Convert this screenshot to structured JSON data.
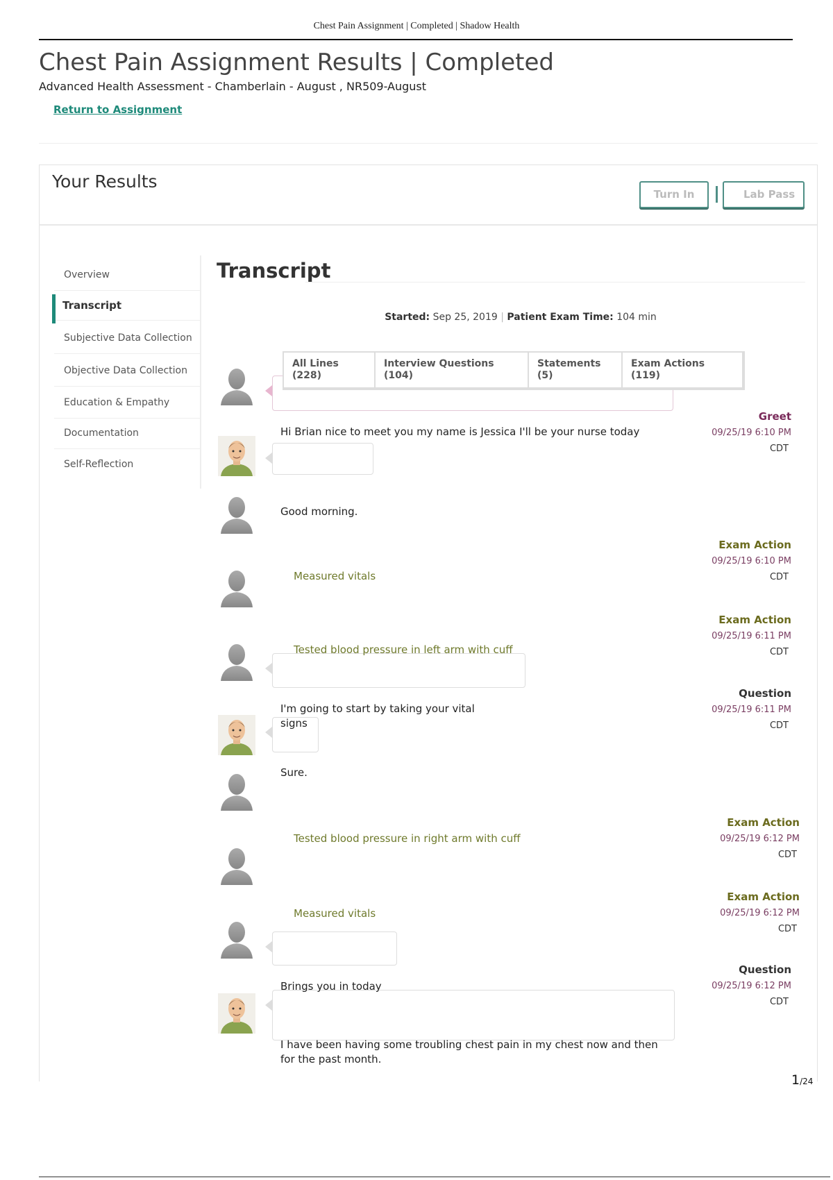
{
  "doc_header": "Chest Pain Assignment | Completed | Shadow Health",
  "page_title": "Chest Pain Assignment Results | Completed",
  "subtitle": "Advanced Health Assessment - Chamberlain - August , NR509-August",
  "return_link": "Return to Assignment",
  "results": {
    "title": "Your Results",
    "turn_in_label": "Turn In",
    "lab_pass_label": "Lab Pass"
  },
  "sidebar": {
    "items": [
      {
        "label": "Overview"
      },
      {
        "label": "Transcript",
        "active": true
      },
      {
        "label": "Subjective Data Collection"
      },
      {
        "label": "Objective Data Collection"
      },
      {
        "label": "Education & Empathy"
      },
      {
        "label": "Documentation"
      },
      {
        "label": "Self-Reflection"
      }
    ]
  },
  "transcript": {
    "title": "Transcript",
    "started_label": "Started:",
    "started_value": "Sep 25, 2019",
    "exam_time_label": "Patient Exam Time:",
    "exam_time_value": "104 min",
    "tabs": [
      {
        "label": "All Lines",
        "count": "(228)"
      },
      {
        "label": "Interview Questions",
        "count": "(104)"
      },
      {
        "label": "Statements",
        "count": "(5)"
      },
      {
        "label": "Exam Actions",
        "count": "(119)"
      }
    ],
    "entries": [
      {
        "speaker": "patient",
        "text": "",
        "label": "",
        "date": "",
        "tz": ""
      },
      {
        "speaker": "nurse",
        "kind": "greet",
        "text": "Hi Brian nice to meet you my name is Jessica I'll be your nurse today",
        "label": "Greet",
        "date": "09/25/19 6:10 PM",
        "tz": "CDT"
      },
      {
        "speaker": "patient",
        "text": "Good morning.",
        "label": "",
        "date": "",
        "tz": ""
      },
      {
        "speaker": "patient",
        "kind": "exam",
        "text": "Measured vitals",
        "label": "Exam Action",
        "date": "09/25/19 6:10 PM",
        "tz": "CDT"
      },
      {
        "speaker": "patient",
        "kind": "exam",
        "text": "Tested blood pressure in left arm with cuff",
        "label": "Exam Action",
        "date": "09/25/19 6:11 PM",
        "tz": "CDT"
      },
      {
        "speaker": "nurse",
        "kind": "question",
        "text": "I'm going to start by taking your vital signs",
        "label": "Question",
        "date": "09/25/19 6:11 PM",
        "tz": "CDT"
      },
      {
        "speaker": "patient",
        "text": "Sure.",
        "label": "",
        "date": "",
        "tz": ""
      },
      {
        "speaker": "patient",
        "kind": "exam",
        "text": "Tested blood pressure in right arm with cuff",
        "label": "Exam Action",
        "date": "09/25/19 6:12 PM",
        "tz": "CDT"
      },
      {
        "speaker": "patient",
        "kind": "exam",
        "text": "Measured vitals",
        "label": "Exam Action",
        "date": "09/25/19 6:12 PM",
        "tz": "CDT"
      },
      {
        "speaker": "nurse",
        "kind": "question",
        "text": "Brings you in today",
        "label": "Question",
        "date": "09/25/19 6:12 PM",
        "tz": "CDT"
      },
      {
        "speaker": "patient",
        "text": "I have been having some troubling chest pain in my chest now and then for the past month.",
        "label": "",
        "date": "",
        "tz": ""
      }
    ]
  },
  "pagination": {
    "current": "1",
    "total": "/24"
  },
  "colors": {
    "accent": "#1e8a7a",
    "greet": "#7a2a5a",
    "exam_action": "#6b6b1e",
    "question": "#333333",
    "timestamp": "#7a3e62"
  }
}
